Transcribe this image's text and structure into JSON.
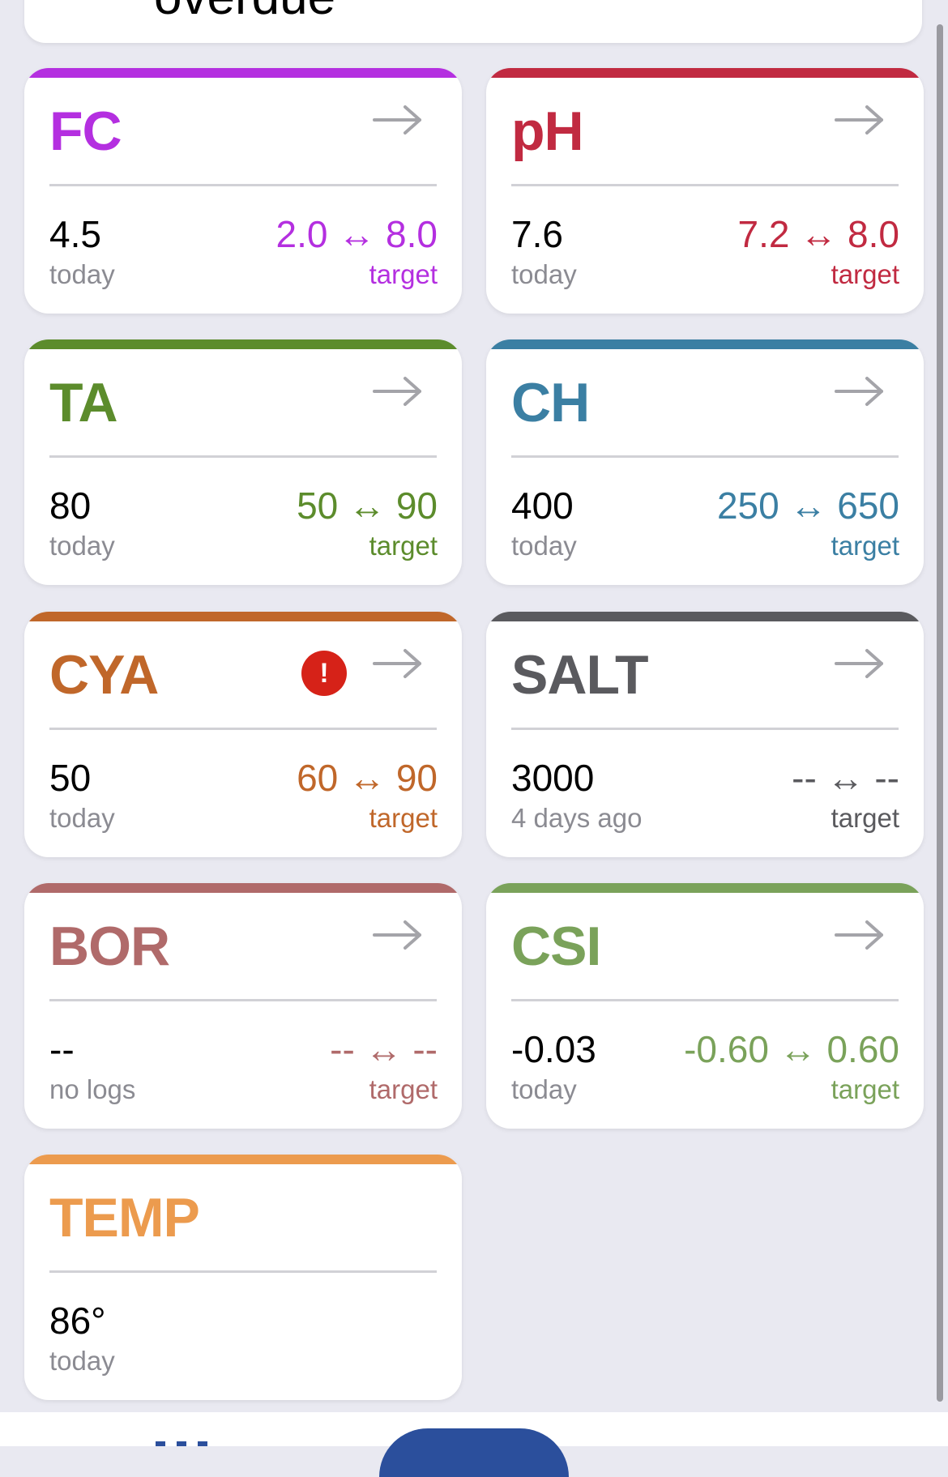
{
  "top_card": {
    "text": "overdue"
  },
  "cards": [
    {
      "key": "fc",
      "title": "FC",
      "color": "#b42fe0",
      "value": "4.5",
      "when": "today",
      "range": "2.0 ↔ 8.0",
      "target_label": "target",
      "range_color": "#b42fe0"
    },
    {
      "key": "ph",
      "title": "pH",
      "color": "#c12a41",
      "value": "7.6",
      "when": "today",
      "range": "7.2 ↔ 8.0",
      "target_label": "target",
      "range_color": "#c12a41"
    },
    {
      "key": "ta",
      "title": "TA",
      "color": "#5c8c2c",
      "value": "80",
      "when": "today",
      "range": "50 ↔ 90",
      "target_label": "target",
      "range_color": "#5c8c2c"
    },
    {
      "key": "ch",
      "title": "CH",
      "color": "#3b7fa3",
      "value": "400",
      "when": "today",
      "range": "250 ↔ 650",
      "target_label": "target",
      "range_color": "#3b7fa3"
    },
    {
      "key": "cya",
      "title": "CYA",
      "color": "#c0672a",
      "value": "50",
      "when": "today",
      "range": "60 ↔ 90",
      "target_label": "target",
      "range_color": "#c0672a",
      "alert": "!"
    },
    {
      "key": "salt",
      "title": "SALT",
      "color": "#5a5a5e",
      "value": "3000",
      "when": "4 days ago",
      "range": "-- ↔ --",
      "target_label": "target",
      "range_color": "#5a5a5e"
    },
    {
      "key": "bor",
      "title": "BOR",
      "color": "#b06a6a",
      "value": "--",
      "when": "no logs",
      "range": "-- ↔ --",
      "target_label": "target",
      "range_color": "#b06a6a"
    },
    {
      "key": "csi",
      "title": "CSI",
      "color": "#7aa25a",
      "value": "-0.03",
      "when": "today",
      "range": "-0.60 ↔ 0.60",
      "target_label": "target",
      "range_color": "#7aa25a"
    },
    {
      "key": "temp",
      "title": "TEMP",
      "color": "#ec9b4e",
      "value": "86°",
      "when": "today"
    }
  ],
  "icons": {
    "arrow": "arrow-right-icon",
    "alert": "alert-circle-icon",
    "tab_grid": "grid-icon"
  }
}
